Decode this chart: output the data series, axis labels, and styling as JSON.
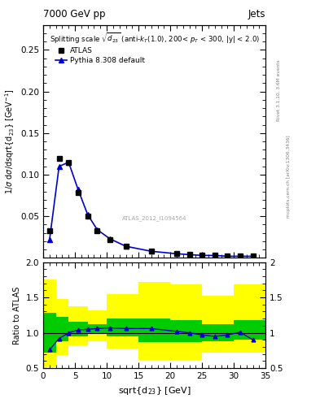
{
  "title_top_left": "7000 GeV pp",
  "title_top_right": "Jets",
  "plot_title_line1": "Splitting scale $\\sqrt{d_{23}}$ (anti-$k_{T}$(1.0), 200< $p_{T}$ < 300, |y| < 2.0)",
  "xlabel": "sqrt{d$_{23}$} [GeV]",
  "ylabel_main": "1/$\\sigma$ d$\\sigma$/dsqrt{d$_{23}$} [GeV$^{-1}$]",
  "ylabel_ratio": "Ratio to ATLAS",
  "watermark": "ATLAS_2012_I1094564",
  "side_text1": "Rivet 3.1.10, 3.6M events",
  "side_text2": "mcplots.cern.ch [arXiv:1306.3436]",
  "xlim": [
    0,
    35
  ],
  "ylim_main": [
    0,
    0.28
  ],
  "ylim_ratio": [
    0.5,
    2.0
  ],
  "atlas_x": [
    1.0,
    2.5,
    4.0,
    5.5,
    7.0,
    8.5,
    10.5,
    13.0,
    17.0,
    21.0,
    23.0,
    25.0,
    27.0,
    29.0,
    31.0,
    33.0
  ],
  "atlas_y": [
    0.033,
    0.12,
    0.115,
    0.079,
    0.05,
    0.033,
    0.022,
    0.014,
    0.008,
    0.005,
    0.004,
    0.003,
    0.003,
    0.002,
    0.002,
    0.002
  ],
  "pythia_x": [
    1.0,
    2.5,
    4.0,
    5.5,
    7.0,
    8.5,
    10.5,
    13.0,
    17.0,
    21.0,
    23.0,
    25.0,
    27.0,
    29.0,
    31.0,
    33.0
  ],
  "pythia_y": [
    0.022,
    0.11,
    0.115,
    0.082,
    0.052,
    0.034,
    0.023,
    0.014,
    0.008,
    0.005,
    0.004,
    0.003,
    0.003,
    0.002,
    0.002,
    0.002
  ],
  "ratio_x": [
    1.0,
    2.5,
    4.0,
    5.5,
    7.0,
    8.5,
    10.5,
    13.0,
    17.0,
    21.0,
    23.0,
    25.0,
    27.0,
    29.0,
    31.0,
    33.0
  ],
  "ratio_y": [
    0.76,
    0.92,
    1.0,
    1.04,
    1.05,
    1.06,
    1.07,
    1.06,
    1.06,
    1.02,
    1.0,
    0.97,
    0.95,
    0.97,
    1.01,
    0.9
  ],
  "band_x_edges": [
    0.0,
    2.0,
    4.0,
    7.0,
    10.0,
    15.0,
    20.0,
    25.0,
    30.0,
    35.0
  ],
  "band_green_lo": [
    0.72,
    0.88,
    0.95,
    1.0,
    0.95,
    0.87,
    0.87,
    0.88,
    0.9,
    0.9
  ],
  "band_green_hi": [
    1.28,
    1.22,
    1.16,
    1.12,
    1.2,
    1.2,
    1.18,
    1.12,
    1.18,
    1.18
  ],
  "band_yellow_lo": [
    0.52,
    0.68,
    0.82,
    0.88,
    0.78,
    0.62,
    0.62,
    0.72,
    0.72,
    0.72
  ],
  "band_yellow_hi": [
    1.75,
    1.48,
    1.38,
    1.32,
    1.55,
    1.72,
    1.68,
    1.52,
    1.68,
    2.0
  ],
  "color_pythia": "#0000cc",
  "color_atlas": "#000000",
  "color_green": "#00cc00",
  "color_yellow": "#ffff00",
  "bg_color": "#ffffff",
  "main_yticks": [
    0.05,
    0.1,
    0.15,
    0.2,
    0.25
  ],
  "ratio_yticks": [
    0.5,
    1.0,
    1.5,
    2.0
  ],
  "legend_label1": "ATLAS",
  "legend_label2": "Pythia 8.308 default"
}
